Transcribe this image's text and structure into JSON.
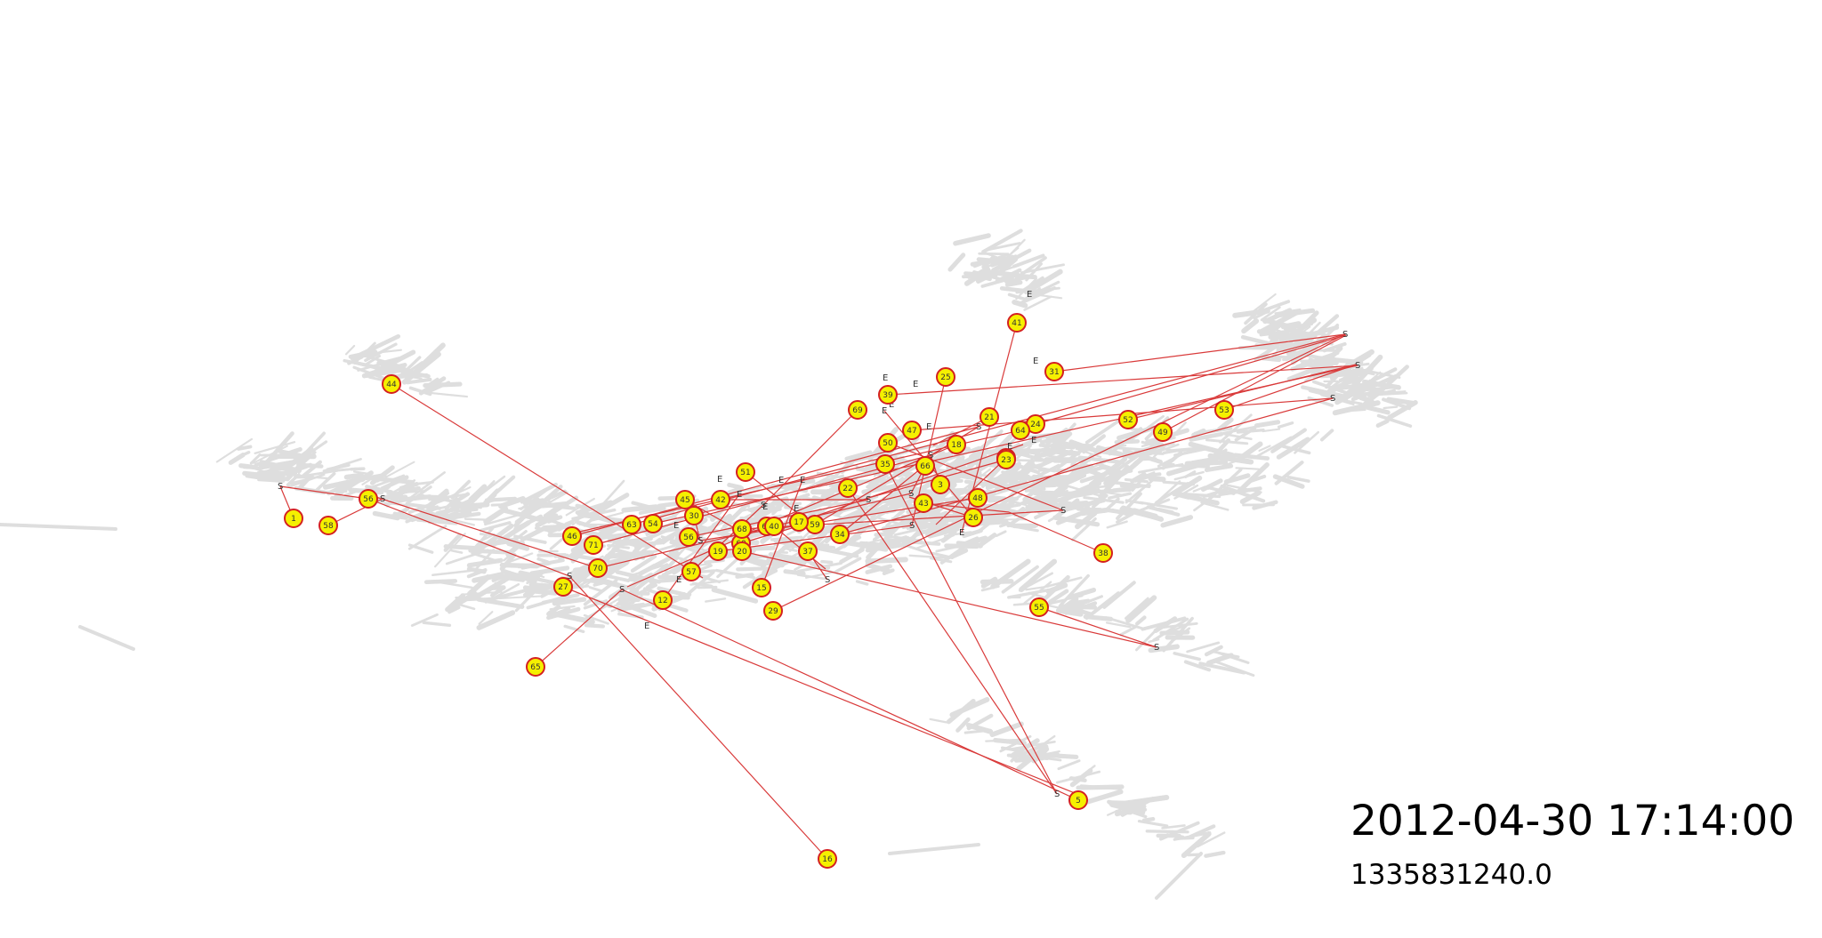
{
  "clock": {
    "datetime": "2012-04-30 17:14:00",
    "epoch": "1335831240.0"
  },
  "colors": {
    "background": "#ffffff",
    "streets": "#dedede",
    "trip_line": "#d93a3a",
    "marker_fill": "#f5f000",
    "marker_stroke": "#d42020",
    "label_text": "#333333"
  },
  "vehicles": [
    "44",
    "1",
    "58",
    "56",
    "27",
    "65",
    "12",
    "16",
    "29",
    "15",
    "5",
    "55",
    "38",
    "41",
    "31",
    "25",
    "69",
    "39",
    "47",
    "50",
    "35",
    "51",
    "45",
    "42",
    "30",
    "63",
    "54",
    "46",
    "71",
    "70",
    "57",
    "56",
    "60",
    "68",
    "62",
    "37",
    "34",
    "59",
    "22",
    "66",
    "18",
    "3",
    "43",
    "48",
    "26",
    "21",
    "24",
    "52",
    "49",
    "53",
    "33",
    "23",
    "64",
    "19",
    "20",
    "40",
    "17"
  ],
  "endpoint_labels": [
    "S",
    "S",
    "S",
    "S",
    "S",
    "S",
    "S",
    "S",
    "S",
    "S",
    "S",
    "S",
    "S",
    "S",
    "S",
    "S",
    "S",
    "S",
    "S",
    "S",
    "E",
    "E",
    "E",
    "E",
    "E",
    "E",
    "E",
    "E",
    "E",
    "E",
    "E",
    "E",
    "E",
    "E",
    "E",
    "E",
    "E",
    "E",
    "E",
    "E",
    "E",
    "E"
  ]
}
